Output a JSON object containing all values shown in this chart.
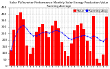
{
  "title_line1": "Solar PV/Inverter Performance Monthly Solar Energy Production Value Running Average",
  "bar_values": [
    120,
    280,
    390,
    410,
    360,
    155,
    95,
    140,
    260,
    300,
    320,
    270,
    220,
    310,
    345,
    290,
    185,
    115,
    75,
    170,
    275,
    315,
    325,
    285,
    195,
    115,
    385,
    55,
    25,
    85,
    380
  ],
  "running_avg": [
    120,
    200,
    263,
    300,
    312,
    286,
    251,
    232,
    231,
    243,
    257,
    261,
    252,
    261,
    271,
    270,
    255,
    237,
    215,
    205,
    212,
    221,
    230,
    234,
    228,
    216,
    232,
    218,
    200,
    188,
    210
  ],
  "bar_color": "#ff0000",
  "avg_color": "#0000ff",
  "bg_color": "#ffffff",
  "plot_bg": "#ffffff",
  "grid_color": "#aaaaaa",
  "ylim": [
    0,
    450
  ],
  "ytick_vals": [
    0,
    50,
    100,
    150,
    200,
    250,
    300,
    350,
    400,
    450
  ],
  "ytick_labels": [
    "0",
    "50",
    "100",
    "150",
    "200",
    "250",
    "300",
    "350",
    "400",
    "450"
  ],
  "title_fontsize": 3.0,
  "tick_fontsize": 3.2,
  "legend_fontsize": 3.0
}
